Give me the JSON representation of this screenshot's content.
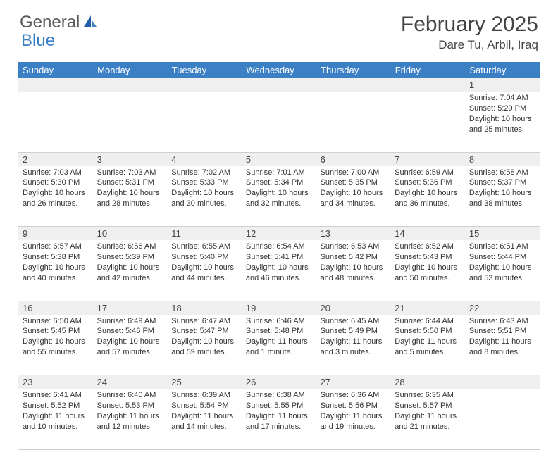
{
  "brand": {
    "part1": "General",
    "part2": "Blue"
  },
  "title": "February 2025",
  "location": "Dare Tu, Arbil, Iraq",
  "colors": {
    "header_bg": "#3b7fc4",
    "header_text": "#ffffff",
    "daynum_bg": "#efefef",
    "border": "#cfcfcf",
    "page_bg": "#ffffff",
    "text": "#333333",
    "logo_gray": "#5a5a5a",
    "logo_blue": "#3b7fc4"
  },
  "fonts": {
    "title_size_pt": 22,
    "location_size_pt": 13,
    "dayheader_size_pt": 10,
    "body_size_pt": 8
  },
  "day_headers": [
    "Sunday",
    "Monday",
    "Tuesday",
    "Wednesday",
    "Thursday",
    "Friday",
    "Saturday"
  ],
  "weeks": [
    [
      null,
      null,
      null,
      null,
      null,
      null,
      {
        "n": "1",
        "sr": "Sunrise: 7:04 AM",
        "ss": "Sunset: 5:29 PM",
        "dl": "Daylight: 10 hours and 25 minutes."
      }
    ],
    [
      {
        "n": "2",
        "sr": "Sunrise: 7:03 AM",
        "ss": "Sunset: 5:30 PM",
        "dl": "Daylight: 10 hours and 26 minutes."
      },
      {
        "n": "3",
        "sr": "Sunrise: 7:03 AM",
        "ss": "Sunset: 5:31 PM",
        "dl": "Daylight: 10 hours and 28 minutes."
      },
      {
        "n": "4",
        "sr": "Sunrise: 7:02 AM",
        "ss": "Sunset: 5:33 PM",
        "dl": "Daylight: 10 hours and 30 minutes."
      },
      {
        "n": "5",
        "sr": "Sunrise: 7:01 AM",
        "ss": "Sunset: 5:34 PM",
        "dl": "Daylight: 10 hours and 32 minutes."
      },
      {
        "n": "6",
        "sr": "Sunrise: 7:00 AM",
        "ss": "Sunset: 5:35 PM",
        "dl": "Daylight: 10 hours and 34 minutes."
      },
      {
        "n": "7",
        "sr": "Sunrise: 6:59 AM",
        "ss": "Sunset: 5:36 PM",
        "dl": "Daylight: 10 hours and 36 minutes."
      },
      {
        "n": "8",
        "sr": "Sunrise: 6:58 AM",
        "ss": "Sunset: 5:37 PM",
        "dl": "Daylight: 10 hours and 38 minutes."
      }
    ],
    [
      {
        "n": "9",
        "sr": "Sunrise: 6:57 AM",
        "ss": "Sunset: 5:38 PM",
        "dl": "Daylight: 10 hours and 40 minutes."
      },
      {
        "n": "10",
        "sr": "Sunrise: 6:56 AM",
        "ss": "Sunset: 5:39 PM",
        "dl": "Daylight: 10 hours and 42 minutes."
      },
      {
        "n": "11",
        "sr": "Sunrise: 6:55 AM",
        "ss": "Sunset: 5:40 PM",
        "dl": "Daylight: 10 hours and 44 minutes."
      },
      {
        "n": "12",
        "sr": "Sunrise: 6:54 AM",
        "ss": "Sunset: 5:41 PM",
        "dl": "Daylight: 10 hours and 46 minutes."
      },
      {
        "n": "13",
        "sr": "Sunrise: 6:53 AM",
        "ss": "Sunset: 5:42 PM",
        "dl": "Daylight: 10 hours and 48 minutes."
      },
      {
        "n": "14",
        "sr": "Sunrise: 6:52 AM",
        "ss": "Sunset: 5:43 PM",
        "dl": "Daylight: 10 hours and 50 minutes."
      },
      {
        "n": "15",
        "sr": "Sunrise: 6:51 AM",
        "ss": "Sunset: 5:44 PM",
        "dl": "Daylight: 10 hours and 53 minutes."
      }
    ],
    [
      {
        "n": "16",
        "sr": "Sunrise: 6:50 AM",
        "ss": "Sunset: 5:45 PM",
        "dl": "Daylight: 10 hours and 55 minutes."
      },
      {
        "n": "17",
        "sr": "Sunrise: 6:49 AM",
        "ss": "Sunset: 5:46 PM",
        "dl": "Daylight: 10 hours and 57 minutes."
      },
      {
        "n": "18",
        "sr": "Sunrise: 6:47 AM",
        "ss": "Sunset: 5:47 PM",
        "dl": "Daylight: 10 hours and 59 minutes."
      },
      {
        "n": "19",
        "sr": "Sunrise: 6:46 AM",
        "ss": "Sunset: 5:48 PM",
        "dl": "Daylight: 11 hours and 1 minute."
      },
      {
        "n": "20",
        "sr": "Sunrise: 6:45 AM",
        "ss": "Sunset: 5:49 PM",
        "dl": "Daylight: 11 hours and 3 minutes."
      },
      {
        "n": "21",
        "sr": "Sunrise: 6:44 AM",
        "ss": "Sunset: 5:50 PM",
        "dl": "Daylight: 11 hours and 5 minutes."
      },
      {
        "n": "22",
        "sr": "Sunrise: 6:43 AM",
        "ss": "Sunset: 5:51 PM",
        "dl": "Daylight: 11 hours and 8 minutes."
      }
    ],
    [
      {
        "n": "23",
        "sr": "Sunrise: 6:41 AM",
        "ss": "Sunset: 5:52 PM",
        "dl": "Daylight: 11 hours and 10 minutes."
      },
      {
        "n": "24",
        "sr": "Sunrise: 6:40 AM",
        "ss": "Sunset: 5:53 PM",
        "dl": "Daylight: 11 hours and 12 minutes."
      },
      {
        "n": "25",
        "sr": "Sunrise: 6:39 AM",
        "ss": "Sunset: 5:54 PM",
        "dl": "Daylight: 11 hours and 14 minutes."
      },
      {
        "n": "26",
        "sr": "Sunrise: 6:38 AM",
        "ss": "Sunset: 5:55 PM",
        "dl": "Daylight: 11 hours and 17 minutes."
      },
      {
        "n": "27",
        "sr": "Sunrise: 6:36 AM",
        "ss": "Sunset: 5:56 PM",
        "dl": "Daylight: 11 hours and 19 minutes."
      },
      {
        "n": "28",
        "sr": "Sunrise: 6:35 AM",
        "ss": "Sunset: 5:57 PM",
        "dl": "Daylight: 11 hours and 21 minutes."
      },
      null
    ]
  ]
}
